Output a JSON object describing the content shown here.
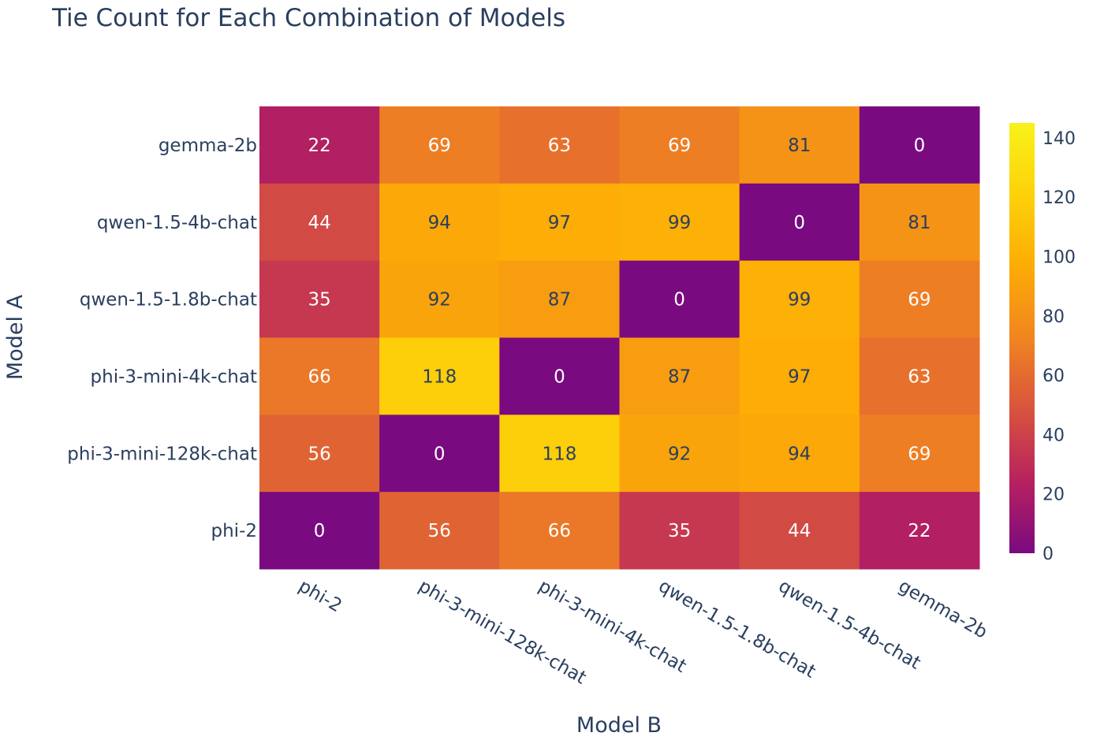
{
  "chart_data": {
    "type": "heatmap",
    "title": "Tie Count for Each Combination of Models",
    "xlabel": "Model B",
    "ylabel": "Model A",
    "x_categories": [
      "phi-2",
      "phi-3-mini-128k-chat",
      "phi-3-mini-4k-chat",
      "qwen-1.5-1.8b-chat",
      "qwen-1.5-4b-chat",
      "gemma-2b"
    ],
    "y_categories_top_to_bottom": [
      "gemma-2b",
      "qwen-1.5-4b-chat",
      "qwen-1.5-1.8b-chat",
      "phi-3-mini-4k-chat",
      "phi-3-mini-128k-chat",
      "phi-2"
    ],
    "values_top_to_bottom": [
      [
        22,
        69,
        63,
        69,
        81,
        0
      ],
      [
        44,
        94,
        97,
        99,
        0,
        81
      ],
      [
        35,
        92,
        87,
        0,
        99,
        69
      ],
      [
        66,
        118,
        0,
        87,
        97,
        63
      ],
      [
        56,
        0,
        118,
        92,
        94,
        69
      ],
      [
        0,
        56,
        66,
        35,
        44,
        22
      ]
    ],
    "colorscale": "Plasma-like (purple to yellow)",
    "colorbar": {
      "range": [
        0,
        145
      ],
      "ticks": [
        0,
        20,
        40,
        60,
        80,
        100,
        120,
        140
      ]
    }
  },
  "colors": {
    "text": "#2a3f5f",
    "scale": [
      "#7a0a80",
      "#b8215f",
      "#d8533e",
      "#f08520",
      "#fdac06",
      "#fdd20a",
      "#f8f21b"
    ]
  }
}
